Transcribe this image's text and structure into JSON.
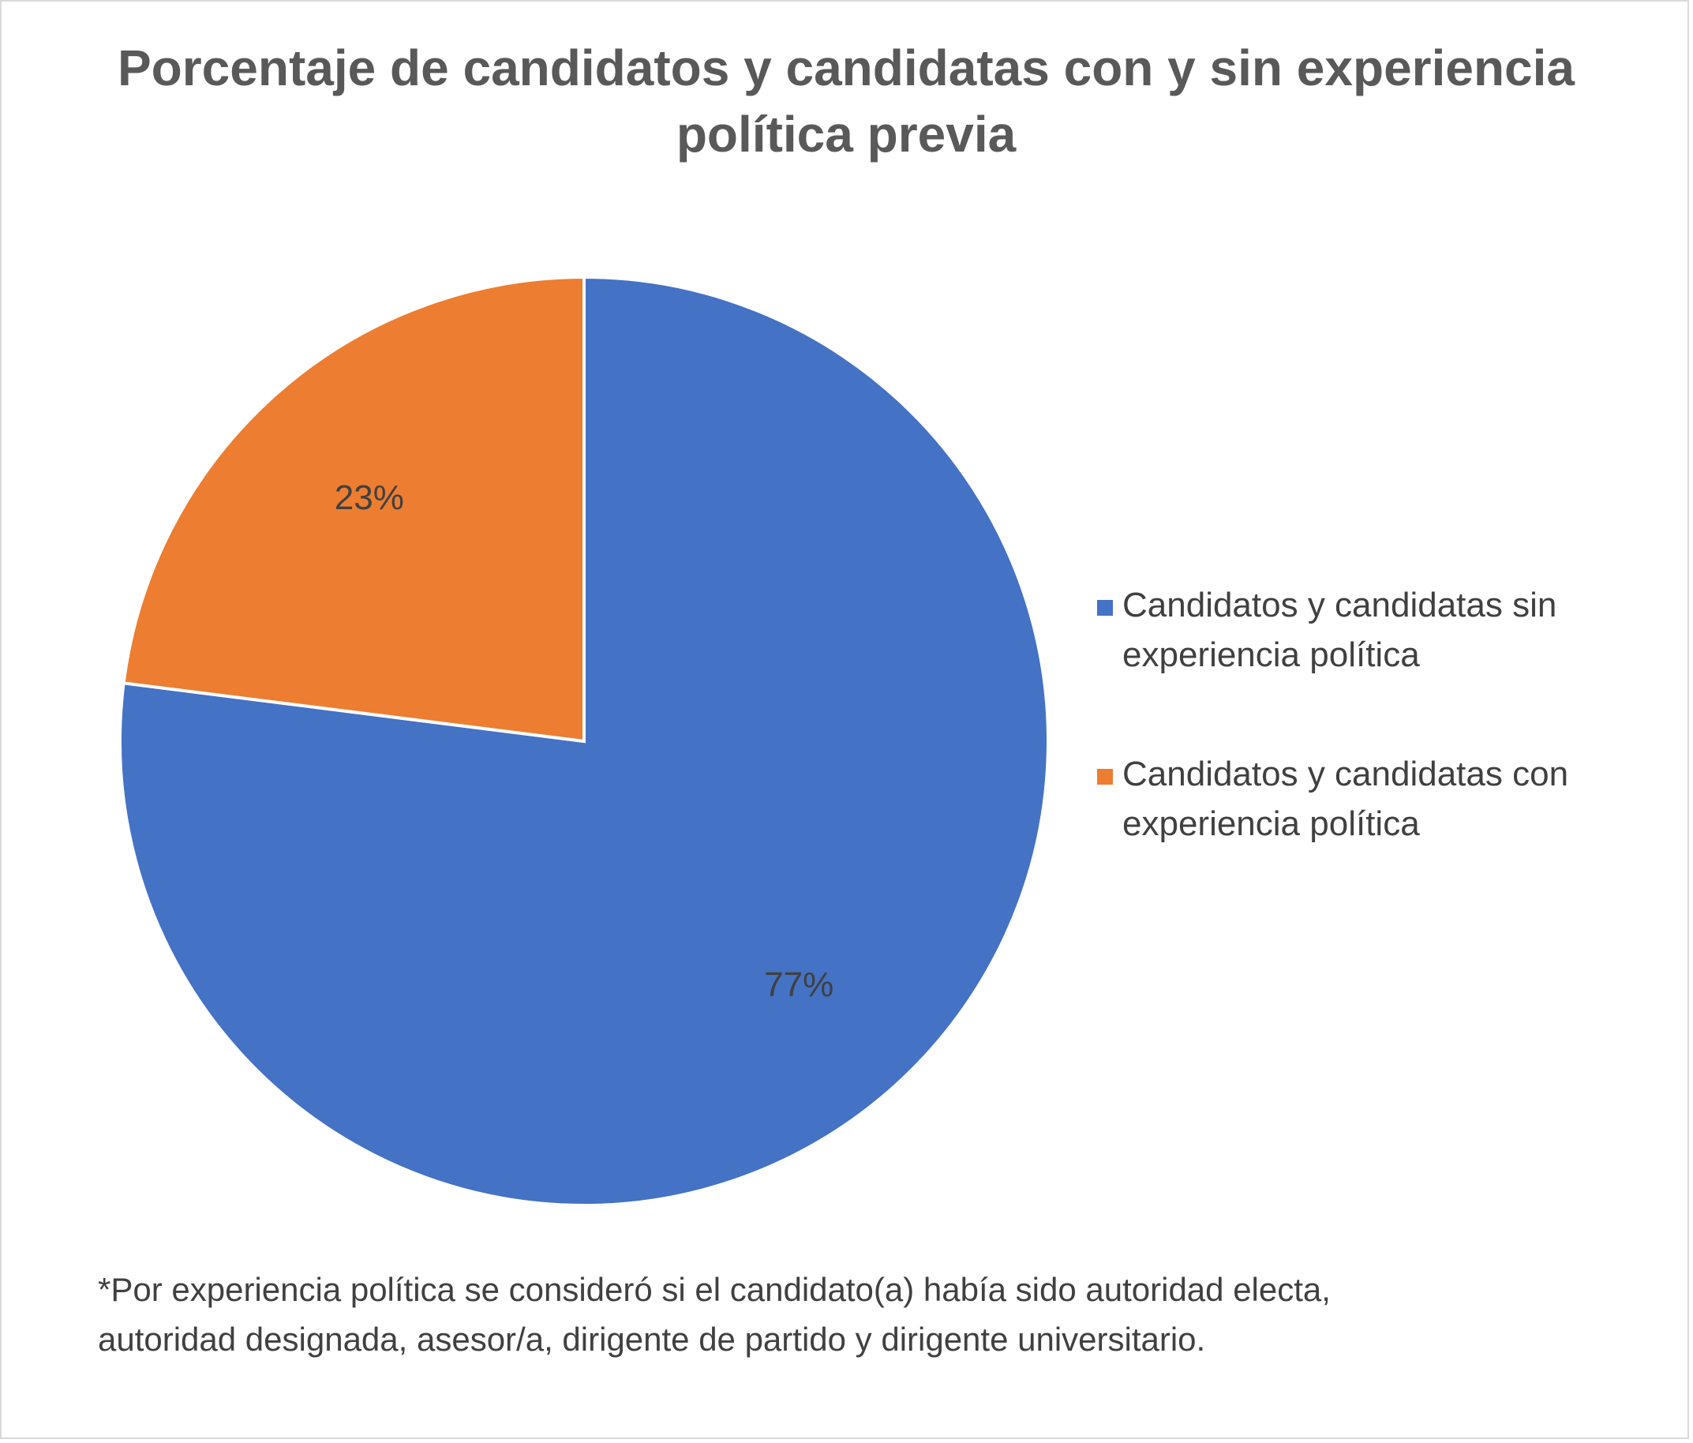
{
  "chart_data": {
    "type": "pie",
    "title_lines": [
      "Porcentaje de candidatos y candidatas con y sin experiencia",
      "política previa"
    ],
    "slices": [
      {
        "label_lines": [
          "Candidatos y candidatas sin",
          "experiencia política"
        ],
        "value": 77,
        "data_label": "77%",
        "color": "#4472C4"
      },
      {
        "label_lines": [
          "Candidatos y candidatas con",
          "experiencia política"
        ],
        "value": 23,
        "data_label": "23%",
        "color": "#ED7D31"
      }
    ],
    "legend_position": "right",
    "footnote_lines": [
      "*Por experiencia política se consideró si el candidato(a) había sido autoridad electa,",
      "autoridad designada, asesor/a, dirigente de partido y dirigente universitario."
    ]
  }
}
